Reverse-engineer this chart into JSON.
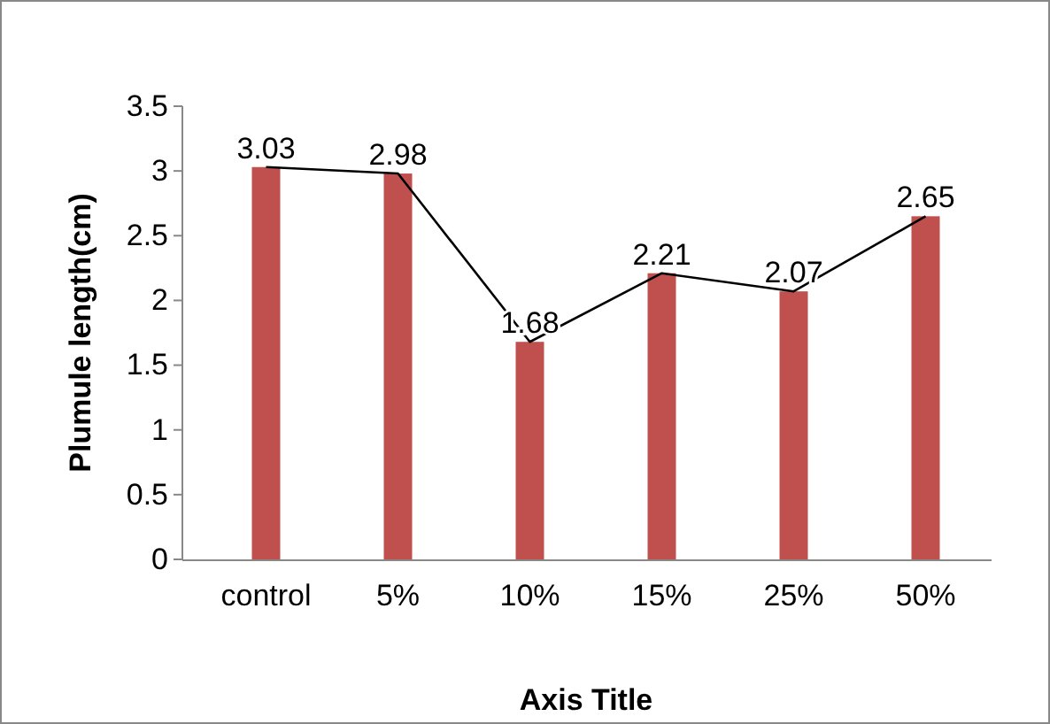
{
  "chart_data": {
    "type": "bar",
    "xlabel": "Axis Title",
    "ylabel": "Plumule length(cm)",
    "categories": [
      "control",
      "5%",
      "10%",
      "15%",
      "25%",
      "50%"
    ],
    "series": [
      {
        "color": "#c0504d",
        "values": [
          3.03,
          2.98,
          1.68,
          2.21,
          2.07,
          2.65
        ],
        "value_labels": [
          "3.03",
          "2.98",
          "1.68",
          "2.21",
          "2.07",
          "2.65"
        ]
      },
      {
        "type": "line",
        "color": "#000000",
        "values": [
          3.03,
          2.98,
          1.68,
          2.21,
          2.07,
          2.65
        ]
      }
    ],
    "ylim": [
      0,
      3.5
    ],
    "yticks": [
      0,
      0.5,
      1,
      1.5,
      2,
      2.5,
      3,
      3.5
    ],
    "grid": false,
    "marker": "none"
  }
}
